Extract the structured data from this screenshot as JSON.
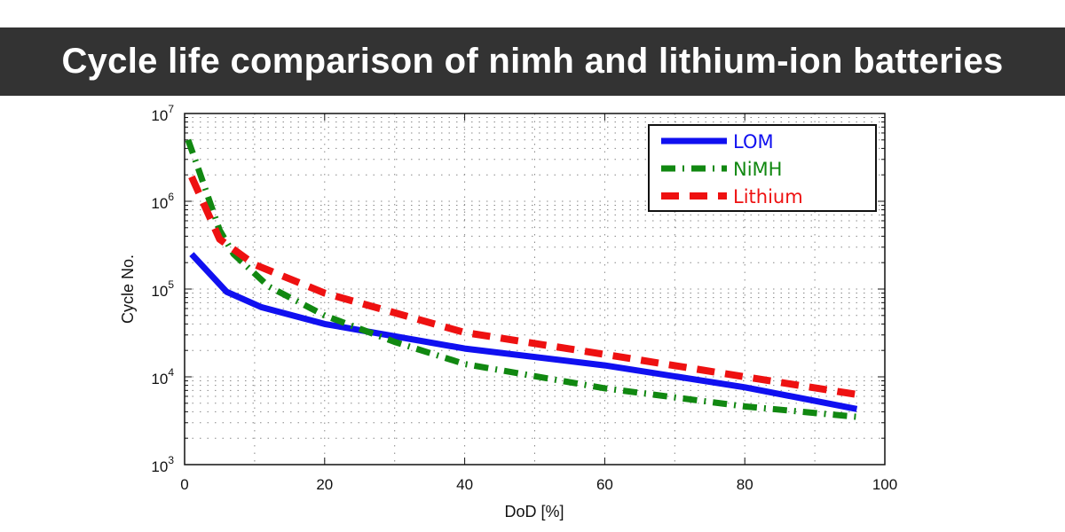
{
  "chart_data": {
    "type": "line",
    "title": "Cycle life comparison of nimh and lithium-ion batteries",
    "xlabel": "DoD [%]",
    "ylabel": "Cycle No.",
    "xlim": [
      0,
      100
    ],
    "ylim": [
      1000,
      10000000
    ],
    "yscale": "log",
    "grid": true,
    "legend_position": "top-right",
    "x_ticks": [
      "0",
      "20",
      "40",
      "60",
      "80",
      "100"
    ],
    "y_ticks": [
      {
        "base": "10",
        "exp": "3"
      },
      {
        "base": "10",
        "exp": "4"
      },
      {
        "base": "10",
        "exp": "5"
      },
      {
        "base": "10",
        "exp": "6"
      },
      {
        "base": "10",
        "exp": "7"
      }
    ],
    "series": [
      {
        "name": "LOM",
        "color": "#1010f0",
        "style": "solid",
        "x": [
          1,
          6,
          11,
          20,
          40,
          60,
          80,
          96
        ],
        "y": [
          250000,
          93000,
          62000,
          40000,
          21000,
          13500,
          7600,
          4300
        ]
      },
      {
        "name": "NiMH",
        "color": "#118811",
        "style": "dash-dot",
        "x": [
          0.5,
          2,
          5,
          7,
          12,
          20,
          30,
          40,
          60,
          80,
          96
        ],
        "y": [
          5000000,
          2300000,
          470000,
          250000,
          107000,
          50000,
          25000,
          14000,
          7400,
          4600,
          3500
        ]
      },
      {
        "name": "Lithium",
        "color": "#ee1111",
        "style": "dashed",
        "x": [
          1,
          5,
          10,
          20,
          40,
          60,
          80,
          96
        ],
        "y": [
          1900000,
          370000,
          190000,
          90000,
          32000,
          18000,
          10000,
          6300
        ]
      }
    ]
  }
}
